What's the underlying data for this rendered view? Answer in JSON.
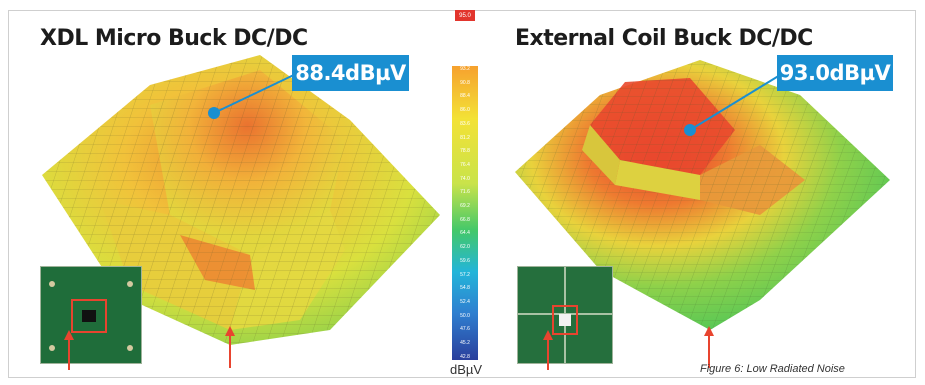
{
  "left_panel": {
    "title": "XDL Micro Buck DC/DC",
    "peak_label": "88.4dBµV"
  },
  "right_panel": {
    "title": "External Coil Buck DC/DC",
    "peak_label": "93.0dBµV"
  },
  "scale": {
    "top_value": "95.0",
    "unit": "dBµV",
    "ticks": [
      "93.2",
      "90.8",
      "88.4",
      "86.0",
      "83.6",
      "81.2",
      "78.8",
      "76.4",
      "74.0",
      "71.6",
      "69.2",
      "66.8",
      "64.4",
      "62.0",
      "59.6",
      "57.2",
      "54.8",
      "52.4",
      "50.0",
      "47.6",
      "45.2",
      "42.8"
    ]
  },
  "caption": "Figure 6: Low Radiated Noise",
  "colors": {
    "callout": "#1a8fd1",
    "arrow": "#e8442f",
    "pcb": "#1f6d3a"
  }
}
